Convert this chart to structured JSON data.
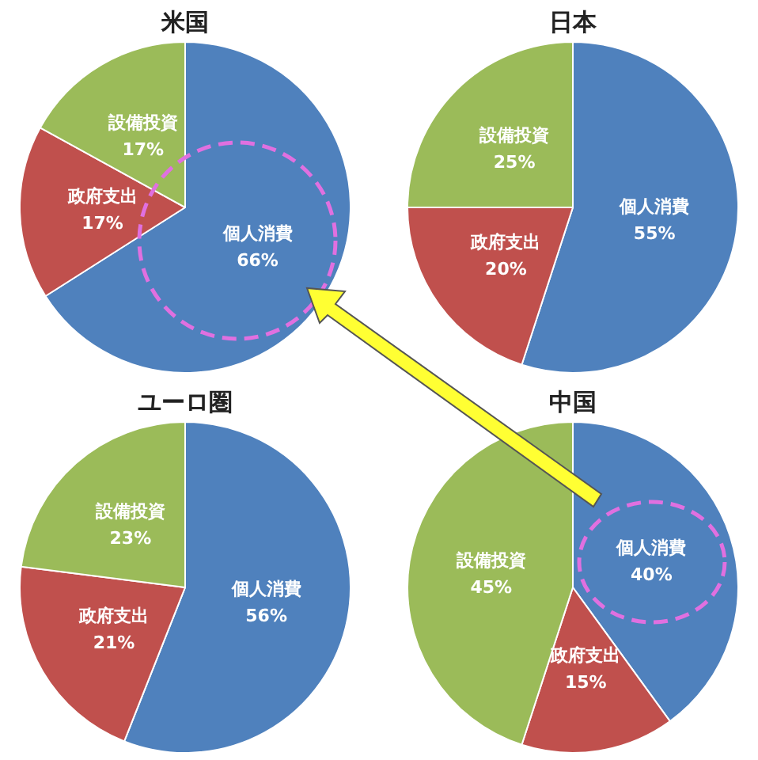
{
  "chart_data": [
    {
      "type": "pie",
      "title": "米国",
      "categories": [
        "個人消費",
        "政府支出",
        "設備投資"
      ],
      "values": [
        66,
        17,
        17
      ],
      "colors": [
        "#4f81bd",
        "#c0504d",
        "#9bbb59"
      ],
      "value_labels": [
        "66%",
        "17%",
        "17%"
      ]
    },
    {
      "type": "pie",
      "title": "日本",
      "categories": [
        "個人消費",
        "政府支出",
        "設備投資"
      ],
      "values": [
        55,
        20,
        25
      ],
      "colors": [
        "#4f81bd",
        "#c0504d",
        "#9bbb59"
      ],
      "value_labels": [
        "55%",
        "20%",
        "25%"
      ]
    },
    {
      "type": "pie",
      "title": "ユーロ圏",
      "categories": [
        "個人消費",
        "政府支出",
        "設備投資"
      ],
      "values": [
        56,
        21,
        23
      ],
      "colors": [
        "#4f81bd",
        "#c0504d",
        "#9bbb59"
      ],
      "value_labels": [
        "56%",
        "21%",
        "23%"
      ]
    },
    {
      "type": "pie",
      "title": "中国",
      "categories": [
        "個人消費",
        "政府支出",
        "設備投資"
      ],
      "values": [
        40,
        15,
        45
      ],
      "colors": [
        "#4f81bd",
        "#c0504d",
        "#9bbb59"
      ],
      "value_labels": [
        "40%",
        "15%",
        "45%"
      ]
    }
  ]
}
